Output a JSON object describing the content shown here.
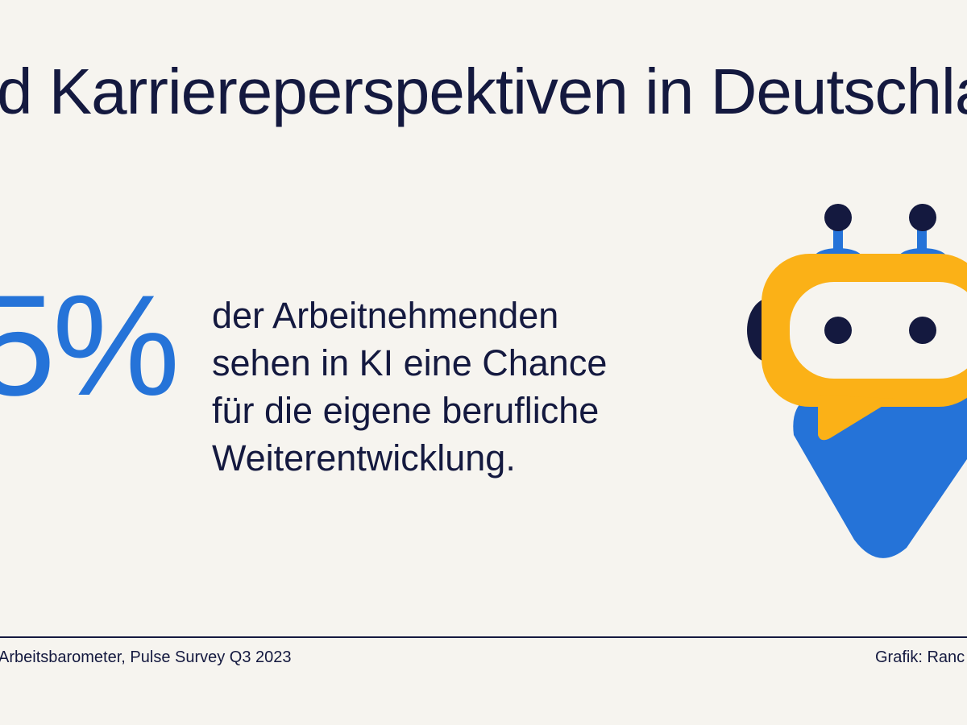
{
  "title": "d Karriereperspektiven in Deutschla",
  "stat": "5%",
  "description": [
    "der Arbeitnehmenden",
    "sehen in KI eine Chance",
    "für die eigene berufliche",
    "Weiterentwicklung."
  ],
  "source": "Arbeitsbarometer, Pulse Survey Q3 2023",
  "credit": "Grafik: Ranc",
  "colors": {
    "background": "#f6f4ef",
    "navy": "#14193f",
    "blue": "#2573d8",
    "yellow": "#fbb117"
  }
}
